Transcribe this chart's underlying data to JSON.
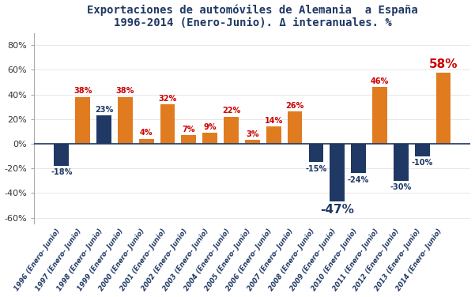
{
  "years": [
    "1996 (Enero- Junio)",
    "1997 (Enero- Junio)",
    "1998 (Enero- Junio)",
    "1999 (Enero- Junio)",
    "2000 (Enero- Junio)",
    "2001 (Enero- Junio)",
    "2002 (Enero- Junio)",
    "2003 (Enero- Junio)",
    "2004 (Enero- Junio)",
    "2005 (Enero- Junio)",
    "2006 (Enero- Junio)",
    "2007 (Enero- Junio)",
    "2008 (Enero- Junio)",
    "2009 (Enero- Junio)",
    "2010 (Enero- Junio)",
    "2011 (Enero- Junio)",
    "2012 (Enero- Junio)",
    "2013 (Enero- Junio)",
    "2014 (Enero- Junio)"
  ],
  "values": [
    -18,
    38,
    23,
    38,
    4,
    32,
    7,
    9,
    22,
    3,
    14,
    26,
    -15,
    -47,
    -24,
    46,
    -30,
    -10,
    58
  ],
  "bar_colors": [
    "#1F3864",
    "#E07B20",
    "#1F3864",
    "#E07B20",
    "#E07B20",
    "#E07B20",
    "#E07B20",
    "#E07B20",
    "#E07B20",
    "#E07B20",
    "#E07B20",
    "#E07B20",
    "#1F3864",
    "#1F3864",
    "#1F3864",
    "#E07B20",
    "#1F3864",
    "#1F3864",
    "#E07B20"
  ],
  "label_colors": [
    "#1F3864",
    "#CC0000",
    "#1F3864",
    "#CC0000",
    "#CC0000",
    "#CC0000",
    "#CC0000",
    "#CC0000",
    "#CC0000",
    "#CC0000",
    "#CC0000",
    "#CC0000",
    "#1F3864",
    "#1F3864",
    "#1F3864",
    "#CC0000",
    "#1F3864",
    "#1F3864",
    "#CC0000"
  ],
  "label_sizes": [
    7,
    7,
    7,
    7,
    7,
    7,
    7,
    7,
    7,
    7,
    7,
    7,
    7,
    11,
    7,
    7,
    7,
    7,
    11
  ],
  "title_line1": "Exportaciones de automóviles de Alemania  a España",
  "title_line2": "1996-2014 (Enero-Junio). Δ interanuales. %",
  "title_color": "#1F3864",
  "bg_color": "#FFFFFF",
  "ylim": [
    -65,
    90
  ],
  "yticks": [
    -60,
    -40,
    -20,
    0,
    20,
    40,
    60,
    80
  ],
  "ytick_labels": [
    "-60%",
    "-40%",
    "-20%",
    "0%",
    "20%",
    "40%",
    "60%",
    "80%"
  ]
}
